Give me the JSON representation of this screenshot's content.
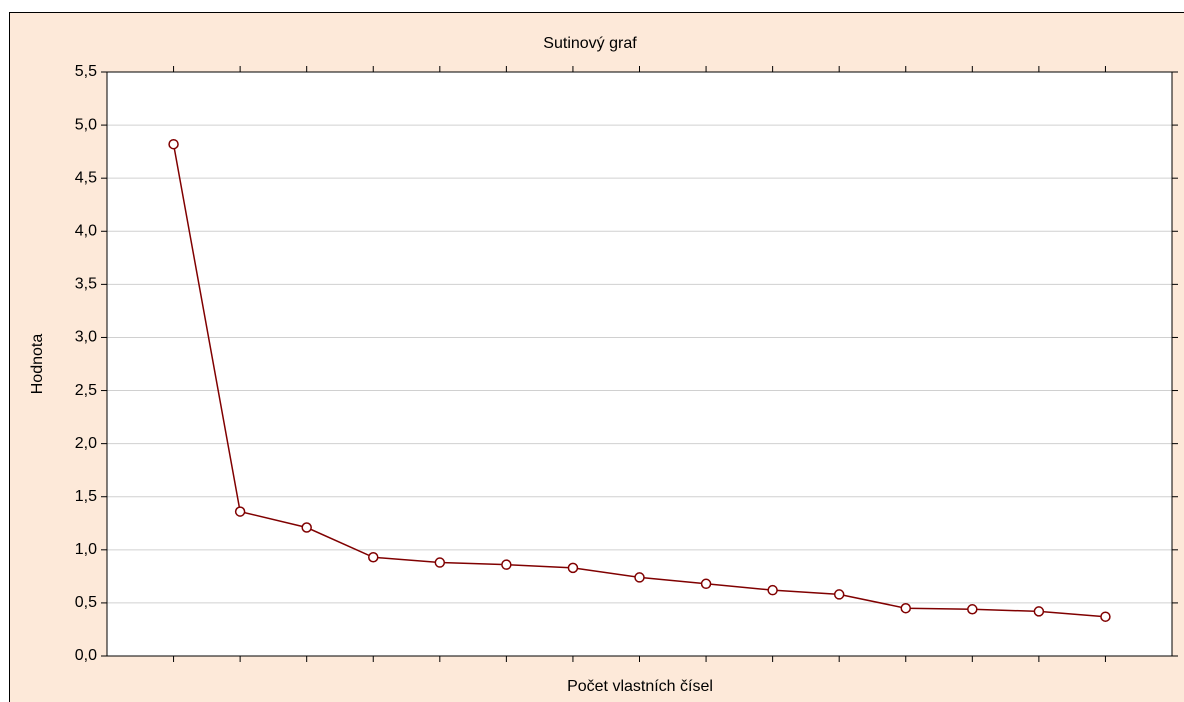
{
  "chart_data": {
    "type": "line",
    "title": "Sutinový graf",
    "xlabel": "Počet vlastních čísel",
    "ylabel": "Hodnota",
    "categories": [
      null,
      null,
      null,
      null,
      null,
      null,
      null,
      null,
      null,
      null,
      null,
      null,
      null,
      null,
      null
    ],
    "values": [
      4.82,
      1.36,
      1.21,
      0.93,
      0.88,
      0.86,
      0.83,
      0.74,
      0.68,
      0.62,
      0.58,
      0.45,
      0.44,
      0.42,
      0.37
    ],
    "color": "#800000",
    "ylim": [
      0,
      5.5
    ],
    "yticks": [
      {
        "value": 0,
        "label": "0,0"
      },
      {
        "value": 0.5,
        "label": "0,5"
      },
      {
        "value": 1,
        "label": "1,0"
      },
      {
        "value": 1.5,
        "label": "1,5"
      },
      {
        "value": 2,
        "label": "2,0"
      },
      {
        "value": 2.5,
        "label": "2,5"
      },
      {
        "value": 3,
        "label": "3,0"
      },
      {
        "value": 3.5,
        "label": "3,5"
      },
      {
        "value": 4,
        "label": "4,0"
      },
      {
        "value": 4.5,
        "label": "4,5"
      },
      {
        "value": 5,
        "label": "5,0"
      },
      {
        "value": 5.5,
        "label": "5,5"
      }
    ],
    "grid": true
  }
}
